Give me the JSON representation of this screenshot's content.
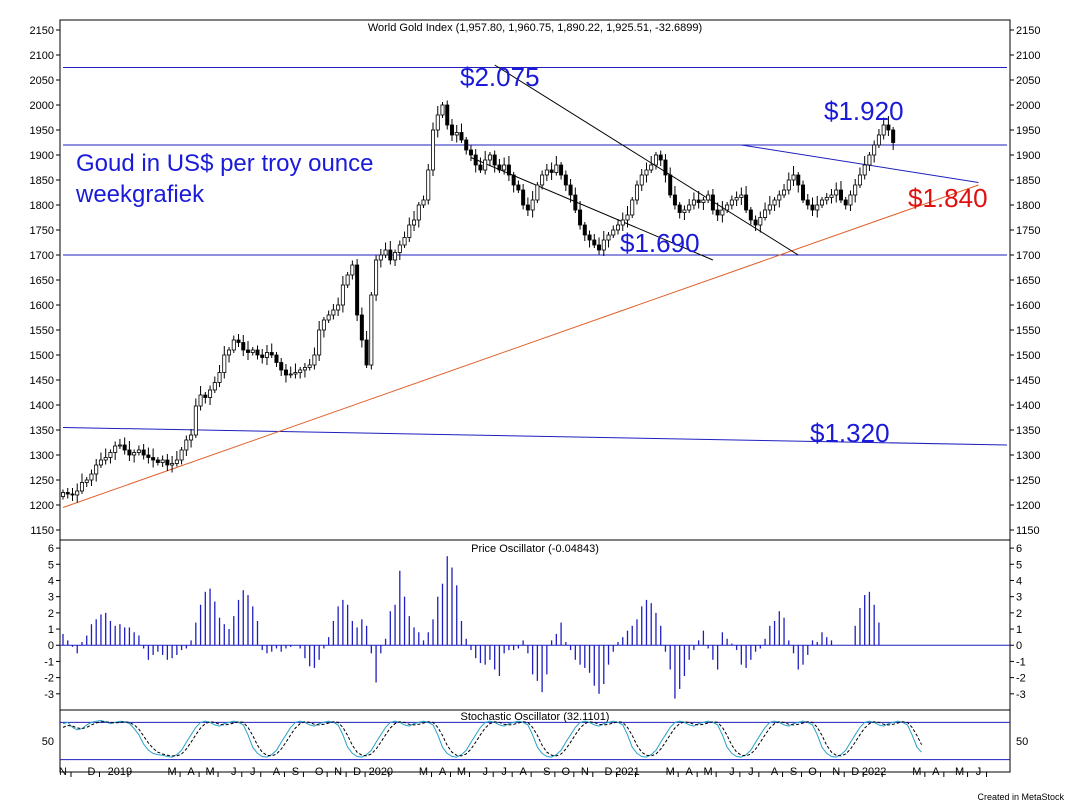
{
  "app": {
    "footer": "Created in MetaStock"
  },
  "colors": {
    "annotation": "#1a1ad8",
    "annotation_red": "#e01010",
    "trend_orange": "#e0602a",
    "osc_bar": "#1f1fbf",
    "level_line": "#1f1fbf"
  },
  "chart_data": [
    {
      "type": "candlestick",
      "title": "World Gold Index (1,957.80, 1,960.75, 1,890.22, 1,925.51, -32.6899)",
      "ylim": [
        1130,
        2170
      ],
      "yticks": [
        1150,
        1200,
        1250,
        1300,
        1350,
        1400,
        1450,
        1500,
        1550,
        1600,
        1650,
        1700,
        1750,
        1800,
        1850,
        1900,
        1950,
        2000,
        2050,
        2100,
        2150
      ],
      "x_labels": [
        "N",
        "D",
        "2019",
        "M",
        "A",
        "M",
        "J",
        "J",
        "A",
        "S",
        "O",
        "N",
        "D",
        "2020",
        "M",
        "A",
        "M",
        "J",
        "J",
        "A",
        "S",
        "O",
        "N",
        "D",
        "2021",
        "M",
        "A",
        "M",
        "J",
        "J",
        "A",
        "S",
        "O",
        "N",
        "D",
        "2022",
        "M",
        "A",
        "M",
        "J"
      ],
      "x_label_weeks": [
        0,
        6,
        12,
        23,
        27,
        31,
        36,
        40,
        45,
        49,
        54,
        58,
        62,
        67,
        76,
        80,
        84,
        89,
        93,
        97,
        102,
        106,
        110,
        115,
        119,
        128,
        132,
        136,
        141,
        145,
        150,
        154,
        158,
        163,
        167,
        171,
        180,
        184,
        189,
        193
      ],
      "weekly_close": [
        1225,
        1222,
        1220,
        1228,
        1245,
        1250,
        1262,
        1280,
        1290,
        1295,
        1305,
        1318,
        1320,
        1310,
        1300,
        1305,
        1310,
        1300,
        1295,
        1290,
        1285,
        1290,
        1280,
        1283,
        1290,
        1310,
        1330,
        1340,
        1398,
        1420,
        1415,
        1430,
        1445,
        1465,
        1500,
        1510,
        1530,
        1525,
        1510,
        1505,
        1510,
        1500,
        1495,
        1505,
        1500,
        1485,
        1470,
        1460,
        1462,
        1465,
        1470,
        1475,
        1480,
        1500,
        1550,
        1570,
        1580,
        1590,
        1600,
        1640,
        1660,
        1680,
        1580,
        1530,
        1480,
        1620,
        1690,
        1700,
        1710,
        1690,
        1705,
        1720,
        1735,
        1760,
        1770,
        1800,
        1810,
        1870,
        1950,
        1980,
        2000,
        1960,
        1940,
        1945,
        1930,
        1910,
        1900,
        1880,
        1870,
        1890,
        1900,
        1880,
        1870,
        1880,
        1860,
        1840,
        1830,
        1800,
        1790,
        1810,
        1840,
        1860,
        1870,
        1865,
        1880,
        1860,
        1840,
        1820,
        1790,
        1760,
        1740,
        1730,
        1720,
        1710,
        1730,
        1740,
        1750,
        1760,
        1770,
        1780,
        1810,
        1840,
        1860,
        1870,
        1880,
        1900,
        1890,
        1860,
        1820,
        1800,
        1785,
        1790,
        1800,
        1810,
        1805,
        1810,
        1820,
        1790,
        1780,
        1790,
        1800,
        1810,
        1815,
        1820,
        1790,
        1770,
        1760,
        1775,
        1790,
        1800,
        1810,
        1820,
        1830,
        1850,
        1860,
        1840,
        1810,
        1800,
        1790,
        1800,
        1810,
        1815,
        1820,
        1830,
        1810,
        1800,
        1820,
        1840,
        1860,
        1880,
        1900,
        1920,
        1940,
        1960,
        1950,
        1925
      ],
      "annotations": [
        {
          "text": "Goud in US$ per troy ounce",
          "color": "annotation"
        },
        {
          "text": "weekgrafiek",
          "color": "annotation"
        },
        {
          "text": "$2.075",
          "color": "annotation"
        },
        {
          "text": "$1.920",
          "color": "annotation"
        },
        {
          "text": "$1.840",
          "color": "annotation_red"
        },
        {
          "text": "$1.690",
          "color": "annotation"
        },
        {
          "text": "$1.320",
          "color": "annotation"
        }
      ],
      "lines": [
        {
          "name": "resistance-2075",
          "from": [
            0,
            2075
          ],
          "to": [
            199,
            2075
          ]
        },
        {
          "name": "level-1920",
          "from": [
            0,
            1920
          ],
          "to": [
            199,
            1920
          ]
        },
        {
          "name": "level-1700",
          "from": [
            0,
            1700
          ],
          "to": [
            199,
            1700
          ]
        },
        {
          "name": "level-1320",
          "from": [
            0,
            1355
          ],
          "to": [
            199,
            1320
          ]
        },
        {
          "name": "uptrend-support",
          "from": [
            0,
            1195
          ],
          "to": [
            193,
            1840
          ]
        },
        {
          "name": "channel-top",
          "from": [
            91,
            2080
          ],
          "to": [
            155,
            1700
          ]
        },
        {
          "name": "channel-bottom",
          "from": [
            86,
            1895
          ],
          "to": [
            137,
            1690
          ]
        },
        {
          "name": "triangle-top",
          "from": [
            143,
            1920
          ],
          "to": [
            193,
            1845
          ]
        }
      ]
    },
    {
      "type": "bar",
      "title": "Price Oscillator (-0.04843)",
      "ylim": [
        -4,
        6.5
      ],
      "yticks": [
        -3,
        -2,
        -1,
        0,
        1,
        2,
        3,
        4,
        5,
        6
      ],
      "values": [
        0.7,
        0.3,
        -0.1,
        -0.5,
        0.2,
        0.6,
        1.3,
        1.6,
        1.9,
        2.0,
        1.5,
        1.2,
        1.3,
        1.1,
        1.1,
        0.8,
        0.6,
        -0.2,
        -0.9,
        -0.6,
        -0.4,
        -0.6,
        -0.9,
        -0.8,
        -0.6,
        -0.3,
        -0.2,
        0.3,
        1.4,
        2.5,
        3.3,
        3.5,
        2.7,
        1.7,
        1.3,
        1.0,
        1.8,
        2.8,
        3.4,
        3.1,
        2.4,
        1.5,
        -0.3,
        -0.5,
        -0.4,
        -0.2,
        -0.4,
        -0.2,
        -0.1,
        0.0,
        -0.2,
        -0.8,
        -1.3,
        -1.4,
        -0.9,
        -0.2,
        0.5,
        1.5,
        2.4,
        2.8,
        2.5,
        1.5,
        1.1,
        1.6,
        1.2,
        -0.5,
        -2.3,
        -0.5,
        0.4,
        2.1,
        2.5,
        4.6,
        3.0,
        1.8,
        1.1,
        0.8,
        0.3,
        0.8,
        1.6,
        3.0,
        3.8,
        5.5,
        4.8,
        3.7,
        1.5,
        0.4,
        -0.3,
        -0.8,
        -1.1,
        -1.2,
        -0.9,
        -1.5,
        -1.9,
        -0.5,
        -0.3,
        -0.3,
        -0.2,
        0.3,
        -0.5,
        -1.8,
        -2.2,
        -2.9,
        -1.8,
        0.3,
        0.7,
        1.4,
        0.2,
        -0.3,
        -0.9,
        -1.2,
        -1.4,
        -1.7,
        -2.5,
        -3.0,
        -2.4,
        -1.2,
        -0.4,
        0.2,
        0.5,
        0.9,
        1.2,
        1.6,
        2.4,
        2.8,
        2.6,
        2.0,
        1.2,
        -0.4,
        -1.5,
        -3.3,
        -2.7,
        -1.9,
        -0.9,
        -0.3,
        0.3,
        0.9,
        -0.2,
        -0.9,
        -1.5,
        0.8,
        0.4,
        0.1,
        -0.3,
        -1.2,
        -1.4,
        -0.9,
        -0.4,
        -0.2,
        0.4,
        1.2,
        1.5,
        2.1,
        1.7,
        0.3,
        -0.5,
        -1.5,
        -1.2,
        -0.6,
        0.3,
        0.2,
        0.8,
        0.5,
        0.3,
        0.0,
        0.0,
        0.0,
        0.0,
        1.2,
        2.3,
        3.1,
        3.3,
        2.5,
        1.4
      ]
    },
    {
      "type": "line",
      "title": "Stochastic Oscillator (32.1101)",
      "ylim": [
        0,
        100
      ],
      "yticks": [
        50
      ],
      "bands": [
        20,
        80
      ],
      "series": [
        {
          "style": "solid",
          "values": [
            78,
            80,
            72,
            68,
            70,
            76,
            80,
            82,
            83,
            81,
            78,
            80,
            82,
            81,
            78,
            70,
            60,
            45,
            35,
            30,
            28,
            27,
            25,
            24,
            28,
            35,
            48,
            60,
            72,
            80,
            82,
            80,
            76,
            74,
            78,
            80,
            82,
            80,
            76,
            60,
            40,
            30,
            25,
            24,
            28,
            35,
            48,
            60,
            72,
            80,
            82,
            80,
            76,
            74,
            78,
            80,
            82,
            80,
            76,
            60,
            40,
            30,
            25,
            24,
            28,
            35,
            48,
            60,
            72,
            80,
            82,
            80,
            76,
            74,
            78,
            80,
            82,
            80,
            76,
            60,
            40,
            30,
            25,
            24,
            28,
            35,
            48,
            60,
            72,
            80,
            82,
            80,
            76,
            74,
            78,
            80,
            82,
            80,
            76,
            60,
            40,
            30,
            25,
            24,
            28,
            35,
            48,
            60,
            72,
            80,
            82,
            80,
            76,
            74,
            78,
            80,
            82,
            80,
            76,
            60,
            40,
            30,
            25,
            24,
            28,
            35,
            48,
            60,
            72,
            80,
            82,
            80,
            76,
            74,
            78,
            80,
            82,
            80,
            76,
            60,
            40,
            30,
            25,
            24,
            28,
            35,
            48,
            60,
            72,
            80,
            82,
            80,
            76,
            74,
            78,
            80,
            82,
            80,
            76,
            60,
            40,
            30,
            25,
            24,
            28,
            35,
            48,
            60,
            72,
            80,
            82,
            80,
            76,
            74,
            78,
            80,
            82,
            80,
            76,
            60,
            40,
            32
          ]
        },
        {
          "style": "dashed",
          "values": [
            72,
            75,
            74,
            71,
            70,
            72,
            76,
            79,
            81,
            81,
            80,
            79,
            80,
            81,
            80,
            76,
            69,
            58,
            47,
            38,
            32,
            29,
            27,
            26,
            26,
            29,
            37,
            48,
            60,
            71,
            78,
            81,
            80,
            77,
            76,
            77,
            79,
            81,
            80,
            72,
            59,
            43,
            32,
            27,
            26,
            29,
            37,
            48,
            60,
            71,
            78,
            81,
            80,
            77,
            76,
            77,
            79,
            81,
            80,
            72,
            59,
            43,
            32,
            27,
            26,
            29,
            37,
            48,
            60,
            71,
            78,
            81,
            80,
            77,
            76,
            77,
            79,
            81,
            80,
            72,
            59,
            43,
            32,
            27,
            26,
            29,
            37,
            48,
            60,
            71,
            78,
            81,
            80,
            77,
            76,
            77,
            79,
            81,
            80,
            72,
            59,
            43,
            32,
            27,
            26,
            29,
            37,
            48,
            60,
            71,
            78,
            81,
            80,
            77,
            76,
            77,
            79,
            81,
            80,
            72,
            59,
            43,
            32,
            27,
            26,
            29,
            37,
            48,
            60,
            71,
            78,
            81,
            80,
            77,
            76,
            77,
            79,
            81,
            80,
            72,
            59,
            43,
            32,
            27,
            26,
            29,
            37,
            48,
            60,
            71,
            78,
            81,
            80,
            77,
            76,
            77,
            79,
            81,
            80,
            72,
            59,
            43,
            32,
            27,
            26,
            29,
            37,
            48,
            60,
            71,
            78,
            81,
            80,
            77,
            76,
            77,
            79,
            81,
            80,
            72,
            59,
            44
          ]
        }
      ]
    }
  ]
}
